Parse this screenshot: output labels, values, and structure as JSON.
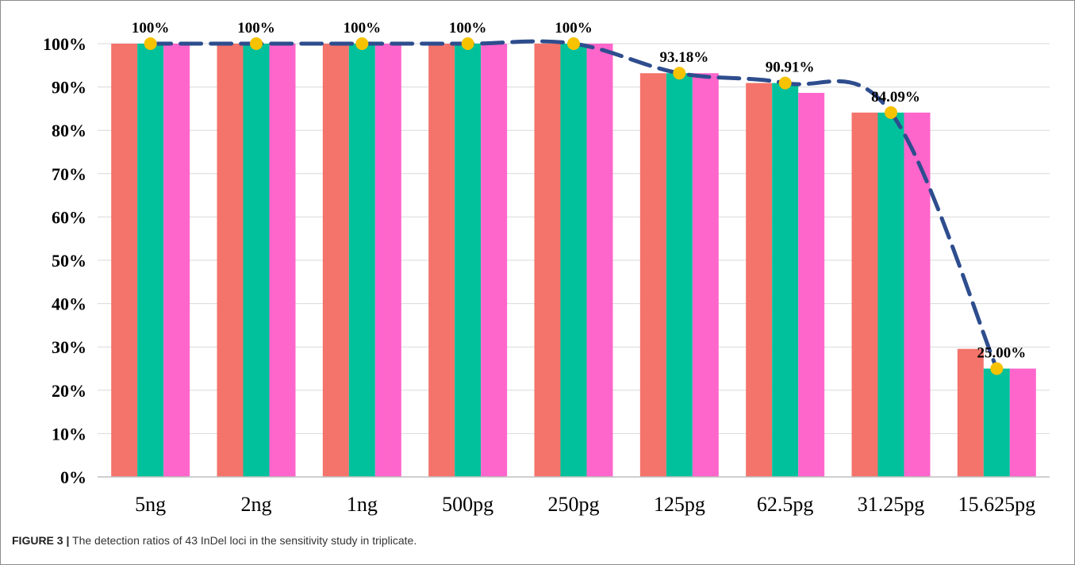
{
  "caption": {
    "figure_label": "FIGURE 3 |",
    "text": "The detection ratios of 43 InDel loci in the sensitivity study in triplicate."
  },
  "colors": {
    "series": [
      "#f4736a",
      "#00c19b",
      "#ff66cc"
    ],
    "line": "#2e4d8e",
    "marker": "#f7c200",
    "grid": "#d9d9d9",
    "axis": "#bfbfbf"
  },
  "chart_data": {
    "type": "bar",
    "title": "",
    "xlabel": "",
    "ylabel": "",
    "ylim": [
      0,
      1
    ],
    "y_ticks": [
      0,
      0.1,
      0.2,
      0.3,
      0.4,
      0.5,
      0.6,
      0.7,
      0.8,
      0.9,
      1.0
    ],
    "y_tick_labels": [
      "0%",
      "10%",
      "20%",
      "30%",
      "40%",
      "50%",
      "60%",
      "70%",
      "80%",
      "90%",
      "100%"
    ],
    "grid": true,
    "legend": "none",
    "categories": [
      "5ng",
      "2ng",
      "1ng",
      "500pg",
      "250pg",
      "125pg",
      "62.5pg",
      "31.25pg",
      "15.625pg"
    ],
    "series": [
      {
        "values": [
          1.0,
          1.0,
          1.0,
          1.0,
          1.0,
          0.9318,
          0.9091,
          0.8409,
          0.2955
        ]
      },
      {
        "values": [
          1.0,
          1.0,
          1.0,
          1.0,
          1.0,
          0.9318,
          0.9091,
          0.8409,
          0.25
        ]
      },
      {
        "values": [
          1.0,
          1.0,
          1.0,
          1.0,
          1.0,
          0.9318,
          0.8864,
          0.8409,
          0.25
        ]
      }
    ],
    "mean_line": {
      "style": "dashed-smooth",
      "values": [
        1.0,
        1.0,
        1.0,
        1.0,
        1.0,
        0.9318,
        0.9091,
        0.8409,
        0.25
      ],
      "labels": [
        "100%",
        "100%",
        "100%",
        "100%",
        "100%",
        "93.18%",
        "90.91%",
        "84.09%",
        "25.00%"
      ]
    }
  }
}
